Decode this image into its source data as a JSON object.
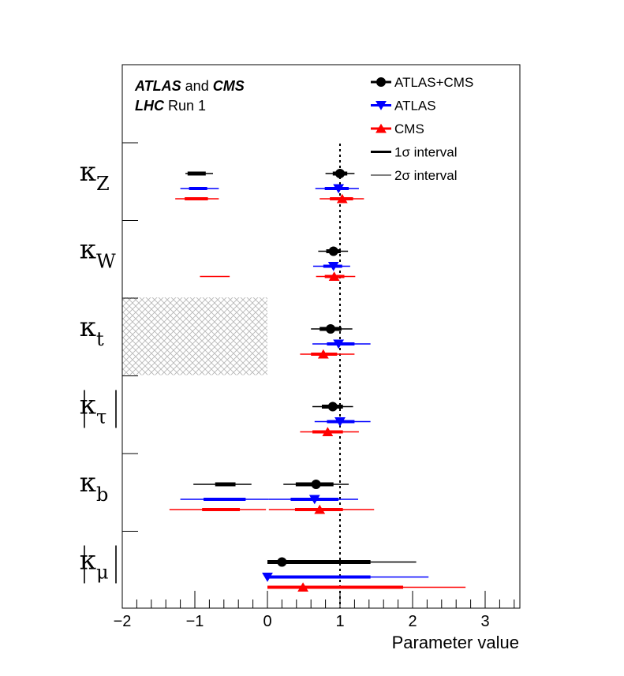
{
  "chart_data": {
    "type": "scatter",
    "header": {
      "line1": [
        {
          "text": "ATLAS",
          "bold": true,
          "italic": true
        },
        {
          "text": " and ",
          "bold": false,
          "italic": false
        },
        {
          "text": "CMS",
          "bold": true,
          "italic": true
        }
      ],
      "line2": [
        {
          "text": "LHC",
          "bold": true,
          "italic": true
        },
        {
          "text": " Run 1",
          "bold": false,
          "italic": false
        }
      ]
    },
    "xlabel": "Parameter value",
    "xlim": [
      -2,
      3.5
    ],
    "xticks": [
      -2,
      -1,
      0,
      1,
      2,
      3
    ],
    "xtick_labels": [
      "−2",
      "−1",
      "0",
      "1",
      "2",
      "3"
    ],
    "reference_line": 1,
    "legend": {
      "placement": "top-right",
      "entries": [
        {
          "label": "ATLAS+CMS",
          "marker": "circle",
          "color": "#000000"
        },
        {
          "label": "ATLAS",
          "marker": "triangle-down",
          "color": "#0000ff"
        },
        {
          "label": "CMS",
          "marker": "triangle-up",
          "color": "#ff0000"
        },
        {
          "label": "1σ interval",
          "marker": "thick-line",
          "color": "#000000"
        },
        {
          "label": "2σ interval",
          "marker": "thin-line",
          "color": "#000000"
        }
      ]
    },
    "series_colors": {
      "ATLAS+CMS": "#000000",
      "ATLAS": "#0000ff",
      "CMS": "#ff0000"
    },
    "series_markers": {
      "ATLAS+CMS": "circle",
      "ATLAS": "triangle-down",
      "CMS": "triangle-up"
    },
    "excluded_region": {
      "parameter": "kt",
      "x_from": -2,
      "x_to": 0,
      "style": "cross-hatched gray"
    },
    "parameters": [
      {
        "id": "kZ",
        "symbol": "κ",
        "subscript": "Z",
        "abs": false,
        "measurements": [
          {
            "series": "ATLAS+CMS",
            "value": 1.0,
            "one_sigma": [
              [
                0.9,
                1.1
              ],
              [
                -1.1,
                -0.85
              ]
            ],
            "two_sigma": [
              [
                0.8,
                1.2
              ],
              [
                -1.13,
                -0.75
              ]
            ],
            "marker_at": 1.0
          },
          {
            "series": "ATLAS",
            "value": 0.98,
            "one_sigma": [
              [
                0.79,
                1.12
              ],
              [
                -1.08,
                -0.83
              ]
            ],
            "two_sigma": [
              [
                0.66,
                1.26
              ],
              [
                -1.2,
                -0.67
              ]
            ],
            "marker_at": 0.98
          },
          {
            "series": "CMS",
            "value": 1.03,
            "one_sigma": [
              [
                0.86,
                1.18
              ],
              [
                -1.14,
                -0.82
              ]
            ],
            "two_sigma": [
              [
                0.72,
                1.33
              ],
              [
                -1.27,
                -0.67
              ]
            ],
            "marker_at": 1.03
          }
        ]
      },
      {
        "id": "kW",
        "symbol": "κ",
        "subscript": "W",
        "abs": false,
        "measurements": [
          {
            "series": "ATLAS+CMS",
            "value": 0.91,
            "one_sigma": [
              [
                0.81,
                1.01
              ]
            ],
            "two_sigma": [
              [
                0.7,
                1.11
              ]
            ],
            "marker_at": 0.91
          },
          {
            "series": "ATLAS",
            "value": 0.91,
            "one_sigma": [
              [
                0.77,
                1.03
              ]
            ],
            "two_sigma": [
              [
                0.63,
                1.14
              ]
            ],
            "marker_at": 0.91
          },
          {
            "series": "CMS",
            "value": 0.92,
            "one_sigma": [
              [
                0.79,
                1.06
              ]
            ],
            "two_sigma": [
              [
                0.67,
                1.21
              ],
              [
                -0.93,
                -0.52
              ]
            ],
            "marker_at": 0.92
          }
        ]
      },
      {
        "id": "kt",
        "symbol": "κ",
        "subscript": "t",
        "abs": false,
        "measurements": [
          {
            "series": "ATLAS+CMS",
            "value": 0.87,
            "one_sigma": [
              [
                0.72,
                1.02
              ]
            ],
            "two_sigma": [
              [
                0.6,
                1.17
              ]
            ],
            "marker_at": 0.87
          },
          {
            "series": "ATLAS",
            "value": 0.98,
            "one_sigma": [
              [
                0.82,
                1.2
              ]
            ],
            "two_sigma": [
              [
                0.62,
                1.42
              ]
            ],
            "marker_at": 0.98
          },
          {
            "series": "CMS",
            "value": 0.77,
            "one_sigma": [
              [
                0.6,
                0.96
              ]
            ],
            "two_sigma": [
              [
                0.45,
                1.2
              ]
            ],
            "marker_at": 0.77
          }
        ]
      },
      {
        "id": "ktau",
        "symbol": "κ",
        "subscript": "τ",
        "abs": true,
        "measurements": [
          {
            "series": "ATLAS+CMS",
            "value": 0.9,
            "one_sigma": [
              [
                0.75,
                1.04
              ]
            ],
            "two_sigma": [
              [
                0.62,
                1.18
              ]
            ],
            "marker_at": 0.9
          },
          {
            "series": "ATLAS",
            "value": 1.0,
            "one_sigma": [
              [
                0.82,
                1.2
              ]
            ],
            "two_sigma": [
              [
                0.65,
                1.42
              ]
            ],
            "marker_at": 1.0
          },
          {
            "series": "CMS",
            "value": 0.83,
            "one_sigma": [
              [
                0.62,
                1.04
              ]
            ],
            "two_sigma": [
              [
                0.45,
                1.26
              ]
            ],
            "marker_at": 0.83
          }
        ]
      },
      {
        "id": "kb",
        "symbol": "κ",
        "subscript": "b",
        "abs": false,
        "measurements": [
          {
            "series": "ATLAS+CMS",
            "value": 0.67,
            "one_sigma": [
              [
                0.39,
                0.91
              ],
              [
                -0.72,
                -0.44
              ]
            ],
            "two_sigma": [
              [
                0.22,
                1.12
              ],
              [
                -1.02,
                -0.22
              ]
            ],
            "marker_at": 0.67
          },
          {
            "series": "ATLAS",
            "value": 0.65,
            "one_sigma": [
              [
                0.32,
                0.98
              ],
              [
                -0.88,
                -0.3
              ]
            ],
            "two_sigma": [
              [
                0.02,
                1.25
              ],
              [
                -1.2,
                0.02
              ]
            ],
            "marker_at": 0.65
          },
          {
            "series": "CMS",
            "value": 0.72,
            "one_sigma": [
              [
                0.38,
                1.04
              ],
              [
                -0.9,
                -0.38
              ]
            ],
            "two_sigma": [
              [
                0.02,
                1.47
              ],
              [
                -1.35,
                -0.02
              ]
            ],
            "marker_at": 0.72
          }
        ]
      },
      {
        "id": "kmu",
        "symbol": "κ",
        "subscript": "μ",
        "abs": true,
        "measurements": [
          {
            "series": "ATLAS+CMS",
            "value": 0.2,
            "one_sigma": [
              [
                0.0,
                1.42
              ]
            ],
            "two_sigma": [
              [
                0.0,
                2.05
              ]
            ],
            "marker_at": 0.2
          },
          {
            "series": "ATLAS",
            "value": 0.0,
            "one_sigma": [
              [
                0.0,
                1.42
              ]
            ],
            "two_sigma": [
              [
                0.0,
                2.22
              ]
            ],
            "marker_at": 0.0
          },
          {
            "series": "CMS",
            "value": 0.49,
            "one_sigma": [
              [
                0.0,
                1.87
              ]
            ],
            "two_sigma": [
              [
                0.0,
                2.73
              ]
            ],
            "marker_at": 0.49
          }
        ]
      }
    ]
  }
}
